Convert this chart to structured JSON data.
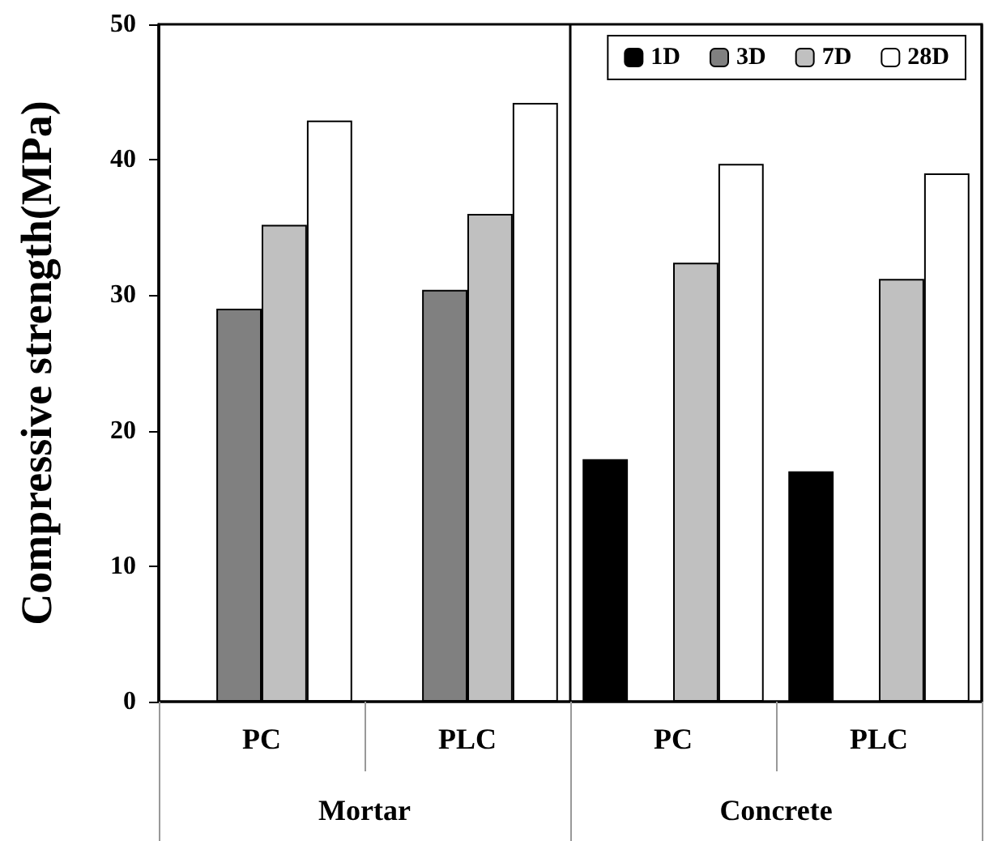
{
  "chart_data": {
    "type": "bar",
    "ylabel": "Compressive strength(MPa)",
    "categories": [
      "PC",
      "PLC",
      "PC",
      "PLC"
    ],
    "annotations": [
      "Mortar",
      "Concrete"
    ],
    "series": [
      {
        "name": "1D",
        "color": "#000000",
        "values": [
          null,
          null,
          17.9,
          17.0
        ]
      },
      {
        "name": "3D",
        "color": "#808080",
        "values": [
          29.0,
          30.4,
          null,
          null
        ]
      },
      {
        "name": "7D",
        "color": "#c0c0c0",
        "values": [
          35.2,
          36.0,
          32.4,
          31.2
        ]
      },
      {
        "name": "28D",
        "color": "#ffffff",
        "values": [
          42.9,
          44.2,
          39.7,
          39.0
        ]
      }
    ],
    "ylim": [
      0,
      50
    ],
    "yticks": [
      0,
      10,
      20,
      30,
      40,
      50
    ],
    "grid": false,
    "legend": "top right"
  }
}
